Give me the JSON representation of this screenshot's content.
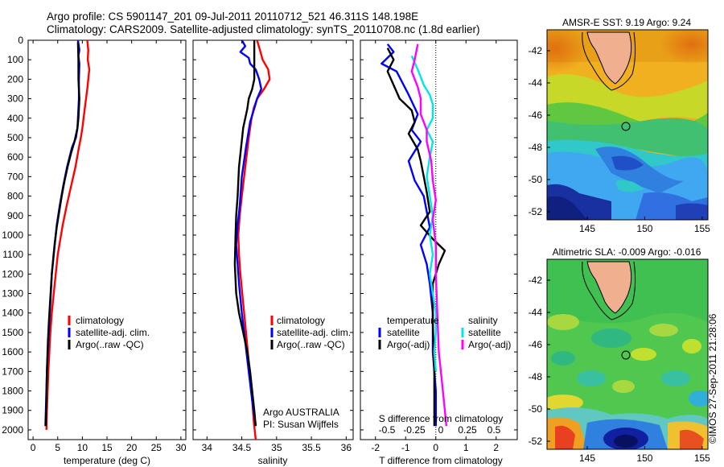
{
  "header": {
    "line1": "Argo profile: CS 5901147_201 09-Jul-2011 20110712_521 46.311S 148.198E",
    "line2": "Climatology: CARS2009. Satellite-adjusted climatology: synTS_20110708.nc (1.8d earlier)"
  },
  "colors": {
    "climatology": "#ff0000",
    "satellite": "#0000ff",
    "argo": "#000000",
    "satellite_sal": "#00e5e5",
    "argo_sal": "#ff00ff"
  },
  "chart_data": [
    {
      "type": "line",
      "name": "temperature-profile",
      "xlabel": "temperature (deg C)",
      "ylabel": "",
      "xlim": [
        -1,
        31
      ],
      "ylim": [
        2050,
        0
      ],
      "xticks": [
        0,
        5,
        10,
        15,
        20,
        25,
        30
      ],
      "yticks": [
        0,
        100,
        200,
        300,
        400,
        500,
        600,
        700,
        800,
        900,
        1000,
        1100,
        1200,
        1300,
        1400,
        1500,
        1600,
        1700,
        1800,
        1900,
        2000
      ],
      "legend": [
        "climatology",
        "satellite-adj. clim.",
        "Argo(..raw -QC)"
      ],
      "series": [
        {
          "name": "climatology",
          "color": "#ff0000",
          "points": [
            [
              11,
              0
            ],
            [
              11.2,
              50
            ],
            [
              11.1,
              100
            ],
            [
              11.4,
              150
            ],
            [
              11,
              250
            ],
            [
              10.5,
              350
            ],
            [
              10,
              450
            ],
            [
              9.7,
              500
            ],
            [
              9.3,
              550
            ],
            [
              8.6,
              650
            ],
            [
              7.7,
              750
            ],
            [
              6.8,
              850
            ],
            [
              6,
              950
            ],
            [
              5,
              1100
            ],
            [
              4.2,
              1300
            ],
            [
              3.8,
              1400
            ],
            [
              3.5,
              1500
            ],
            [
              3.1,
              1700
            ],
            [
              2.8,
              1900
            ],
            [
              2.7,
              2000
            ]
          ]
        },
        {
          "name": "satellite-adj. clim.",
          "color": "#0000ff",
          "points": [
            [
              9.1,
              0
            ],
            [
              9.4,
              50
            ],
            [
              9.2,
              80
            ],
            [
              9.4,
              120
            ],
            [
              9.3,
              200
            ],
            [
              9.3,
              300
            ],
            [
              9.1,
              400
            ],
            [
              9,
              450
            ],
            [
              8.7,
              500
            ],
            [
              7.9,
              550
            ],
            [
              6.9,
              650
            ],
            [
              6.1,
              750
            ],
            [
              5.4,
              850
            ],
            [
              4.8,
              950
            ],
            [
              4.2,
              1100
            ],
            [
              3.8,
              1200
            ],
            [
              3.6,
              1300
            ],
            [
              3.4,
              1400
            ],
            [
              3.2,
              1500
            ],
            [
              2.8,
              1700
            ],
            [
              2.6,
              1900
            ],
            [
              2.5,
              1980
            ]
          ]
        },
        {
          "name": "Argo(..raw -QC)",
          "color": "#000000",
          "points": [
            [
              9.1,
              10
            ],
            [
              9.2,
              100
            ],
            [
              9.2,
              200
            ],
            [
              9.4,
              300
            ],
            [
              9.2,
              400
            ],
            [
              9,
              450
            ],
            [
              8.4,
              520
            ],
            [
              7.7,
              580
            ],
            [
              7,
              650
            ],
            [
              6.4,
              720
            ],
            [
              5.8,
              800
            ],
            [
              5.3,
              880
            ],
            [
              4.8,
              960
            ],
            [
              4.4,
              1040
            ],
            [
              4.1,
              1120
            ],
            [
              3.8,
              1200
            ],
            [
              3.6,
              1280
            ],
            [
              3.4,
              1360
            ],
            [
              3.2,
              1450
            ],
            [
              3,
              1550
            ],
            [
              2.8,
              1700
            ],
            [
              2.7,
              1850
            ],
            [
              2.6,
              1980
            ]
          ]
        }
      ]
    },
    {
      "type": "line",
      "name": "salinity-profile",
      "xlabel": "salinity",
      "xlim": [
        33.8,
        36.1
      ],
      "ylim": [
        2050,
        0
      ],
      "xticks": [
        34,
        34.5,
        35,
        35.5,
        36
      ],
      "legend": [
        "climatology",
        "satellite-adj. clim.",
        "Argo(..raw -QC)"
      ],
      "annotation": [
        "Argo AUSTRALIA",
        "PI: Susan Wijffels"
      ],
      "series": [
        {
          "name": "climatology",
          "color": "#ff0000",
          "points": [
            [
              34.72,
              0
            ],
            [
              34.76,
              50
            ],
            [
              34.8,
              100
            ],
            [
              34.88,
              150
            ],
            [
              34.9,
              200
            ],
            [
              34.82,
              250
            ],
            [
              34.72,
              300
            ],
            [
              34.67,
              350
            ],
            [
              34.64,
              400
            ],
            [
              34.6,
              500
            ],
            [
              34.55,
              650
            ],
            [
              34.5,
              800
            ],
            [
              34.47,
              900
            ],
            [
              34.45,
              1000
            ],
            [
              34.46,
              1100
            ],
            [
              34.48,
              1200
            ],
            [
              34.52,
              1350
            ],
            [
              34.56,
              1500
            ],
            [
              34.6,
              1650
            ],
            [
              34.64,
              1800
            ],
            [
              34.67,
              1950
            ],
            [
              34.7,
              2050
            ]
          ]
        },
        {
          "name": "satellite-adj. clim.",
          "color": "#0000ff",
          "points": [
            [
              34.5,
              0
            ],
            [
              34.55,
              30
            ],
            [
              34.48,
              60
            ],
            [
              34.6,
              90
            ],
            [
              34.62,
              120
            ],
            [
              34.7,
              150
            ],
            [
              34.75,
              200
            ],
            [
              34.78,
              250
            ],
            [
              34.72,
              300
            ],
            [
              34.68,
              350
            ],
            [
              34.62,
              420
            ],
            [
              34.56,
              550
            ],
            [
              34.5,
              700
            ],
            [
              34.47,
              850
            ],
            [
              34.44,
              950
            ],
            [
              34.42,
              1050
            ],
            [
              34.44,
              1150
            ],
            [
              34.46,
              1250
            ],
            [
              34.5,
              1400
            ],
            [
              34.55,
              1550
            ],
            [
              34.6,
              1700
            ],
            [
              34.65,
              1850
            ],
            [
              34.7,
              1980
            ]
          ]
        },
        {
          "name": "Argo(..raw -QC)",
          "color": "#000000",
          "points": [
            [
              34.68,
              0
            ],
            [
              34.68,
              100
            ],
            [
              34.68,
              200
            ],
            [
              34.65,
              250
            ],
            [
              34.6,
              300
            ],
            [
              34.58,
              350
            ],
            [
              34.52,
              450
            ],
            [
              34.49,
              550
            ],
            [
              34.46,
              650
            ],
            [
              34.44,
              800
            ],
            [
              34.42,
              900
            ],
            [
              34.41,
              1000
            ],
            [
              34.4,
              1150
            ],
            [
              34.42,
              1300
            ],
            [
              34.46,
              1400
            ],
            [
              34.52,
              1500
            ],
            [
              34.58,
              1600
            ],
            [
              34.62,
              1700
            ],
            [
              34.65,
              1800
            ],
            [
              34.68,
              1900
            ],
            [
              34.7,
              1980
            ]
          ]
        }
      ]
    },
    {
      "type": "line",
      "name": "difference-profile",
      "xlabel": "T difference from climatology",
      "xlabel_top": "S difference from climatology",
      "xlim": [
        -2.5,
        2.7
      ],
      "ylim": [
        2050,
        0
      ],
      "xticks": [
        -2,
        -1,
        0,
        1,
        2
      ],
      "xticks_S": [
        "-0.5",
        "-0.25",
        "0",
        "0.25",
        "0.5"
      ],
      "legend_temperature": {
        "title": "temperature",
        "items": [
          "satellite",
          "Argo(-adj)"
        ]
      },
      "legend_salinity": {
        "title": "salinity",
        "items": [
          "satellite",
          "Argo(-adj)"
        ]
      },
      "series": [
        {
          "name": "temperature satellite",
          "color": "#0000ff",
          "points": [
            [
              -1.6,
              20
            ],
            [
              -1.4,
              60
            ],
            [
              -1.8,
              120
            ],
            [
              -1.3,
              160
            ],
            [
              -1.1,
              220
            ],
            [
              -0.9,
              280
            ],
            [
              -0.6,
              380
            ],
            [
              -0.8,
              460
            ],
            [
              -0.5,
              520
            ],
            [
              -0.9,
              620
            ],
            [
              -0.7,
              720
            ],
            [
              -0.4,
              800
            ],
            [
              -0.3,
              880
            ],
            [
              -0.2,
              960
            ],
            [
              -0.5,
              1050
            ],
            [
              -0.3,
              1150
            ],
            [
              -0.2,
              1250
            ],
            [
              -0.1,
              1400
            ],
            [
              -0.1,
              1600
            ],
            [
              0,
              1800
            ],
            [
              0,
              1980
            ]
          ]
        },
        {
          "name": "temperature Argo(-adj)",
          "color": "#000000",
          "points": [
            [
              -1.6,
              40
            ],
            [
              -1.4,
              100
            ],
            [
              -1.6,
              160
            ],
            [
              -1.4,
              230
            ],
            [
              -1.2,
              300
            ],
            [
              -0.8,
              360
            ],
            [
              -0.7,
              420
            ],
            [
              -0.9,
              480
            ],
            [
              -0.6,
              560
            ],
            [
              -0.5,
              620
            ],
            [
              -0.4,
              700
            ],
            [
              -0.3,
              780
            ],
            [
              -0.2,
              880
            ],
            [
              -0.5,
              950
            ],
            [
              -0.1,
              1020
            ],
            [
              0.3,
              1080
            ],
            [
              0.1,
              1150
            ],
            [
              -0.1,
              1250
            ],
            [
              -0.1,
              1450
            ],
            [
              -0.05,
              1700
            ],
            [
              -0.05,
              1980
            ]
          ]
        },
        {
          "name": "salinity satellite",
          "color": "#00e5e5",
          "points": [
            [
              -0.8,
              80
            ],
            [
              -0.6,
              150
            ],
            [
              -0.4,
              230
            ],
            [
              -0.2,
              280
            ],
            [
              -0.1,
              330
            ],
            [
              -0.1,
              400
            ],
            [
              -0.3,
              460
            ],
            [
              -0.1,
              520
            ],
            [
              -0.2,
              600
            ],
            [
              -0.3,
              700
            ],
            [
              -0.2,
              800
            ],
            [
              -0.1,
              900
            ],
            [
              -0.2,
              1000
            ],
            [
              -0.1,
              1100
            ],
            [
              -0.2,
              1200
            ],
            [
              -0.1,
              1300
            ],
            [
              0,
              1400
            ],
            [
              0,
              1500
            ],
            [
              -0.05,
              1600
            ],
            [
              0,
              1700
            ]
          ]
        },
        {
          "name": "salinity Argo(-adj)",
          "color": "#ff00ff",
          "points": [
            [
              -0.6,
              20
            ],
            [
              -0.7,
              100
            ],
            [
              -0.8,
              160
            ],
            [
              -0.6,
              240
            ],
            [
              -0.5,
              300
            ],
            [
              -0.5,
              380
            ],
            [
              -0.3,
              460
            ],
            [
              -0.3,
              520
            ],
            [
              -0.15,
              620
            ],
            [
              -0.1,
              720
            ],
            [
              0,
              820
            ],
            [
              -0.1,
              920
            ],
            [
              0,
              1050
            ],
            [
              0,
              1200
            ],
            [
              0.05,
              1400
            ],
            [
              0.1,
              1600
            ],
            [
              0.2,
              1750
            ],
            [
              0.3,
              1900
            ],
            [
              0.35,
              1980
            ]
          ]
        }
      ]
    },
    {
      "type": "heatmap",
      "name": "sst-map",
      "title": "AMSR-E SST: 9.19 Argo: 9.24",
      "xlim": [
        141.5,
        155.5
      ],
      "ylim": [
        -52.5,
        -40.7
      ],
      "xticks": [
        145,
        150,
        155
      ],
      "yticks": [
        -42,
        -44,
        -46,
        -48,
        -50,
        -52
      ],
      "marker": {
        "lon": 148.2,
        "lat": -46.3
      }
    },
    {
      "type": "heatmap",
      "name": "sla-map",
      "title": "Altimetric SLA: -0.009 Argo: -0.016",
      "xlim": [
        141.5,
        155.5
      ],
      "ylim": [
        -52.5,
        -40.7
      ],
      "xticks": [
        145,
        150,
        155
      ],
      "yticks": [
        -42,
        -44,
        -46,
        -48,
        -50,
        -52
      ],
      "marker": {
        "lon": 148.2,
        "lat": -46.3
      }
    }
  ],
  "side_text": "©IMOS 27-Sep-2011 21:28:06"
}
